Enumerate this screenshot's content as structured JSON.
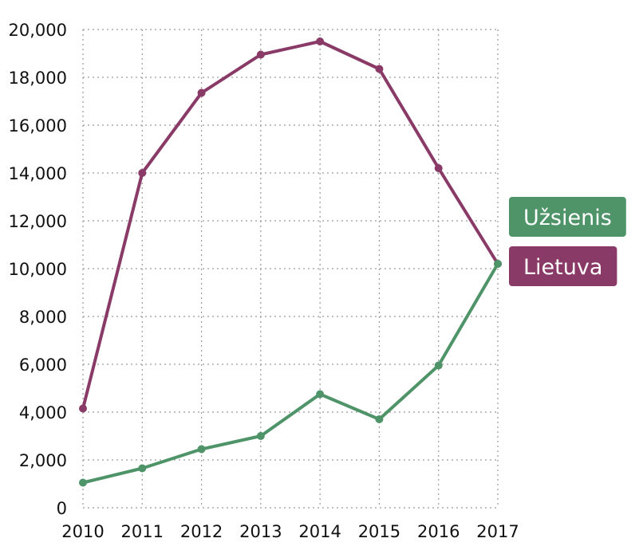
{
  "chart_data": {
    "type": "line",
    "title": "",
    "xlabel": "",
    "ylabel": "",
    "x": [
      "2010",
      "2011",
      "2012",
      "2013",
      "2014",
      "2015",
      "2016",
      "2017"
    ],
    "x_tick_labels": [
      "2010",
      "2011",
      "2012",
      "2013",
      "2014",
      "2015",
      "2016",
      "2017"
    ],
    "ylim": [
      0,
      20000
    ],
    "y_ticks": [
      0,
      2000,
      4000,
      6000,
      8000,
      10000,
      12000,
      14000,
      16000,
      18000,
      20000
    ],
    "y_tick_labels": [
      "0",
      "2,000",
      "4,000",
      "6,000",
      "8,000",
      "10,000",
      "12,000",
      "14,000",
      "16,000",
      "18,000",
      "20,000"
    ],
    "grid": true,
    "legend_position": "right",
    "series": [
      {
        "name": "Lietuva",
        "color": "#8a3a67",
        "values": [
          4150,
          14000,
          17350,
          18950,
          19500,
          18350,
          14200,
          10200
        ]
      },
      {
        "name": "Užsienis",
        "color": "#4e9468",
        "values": [
          1050,
          1650,
          2450,
          3000,
          4750,
          3700,
          5950,
          10200
        ]
      }
    ],
    "legend": [
      {
        "label": "Užsienis",
        "color": "#4e9468"
      },
      {
        "label": "Lietuva",
        "color": "#8a3a67"
      }
    ]
  }
}
